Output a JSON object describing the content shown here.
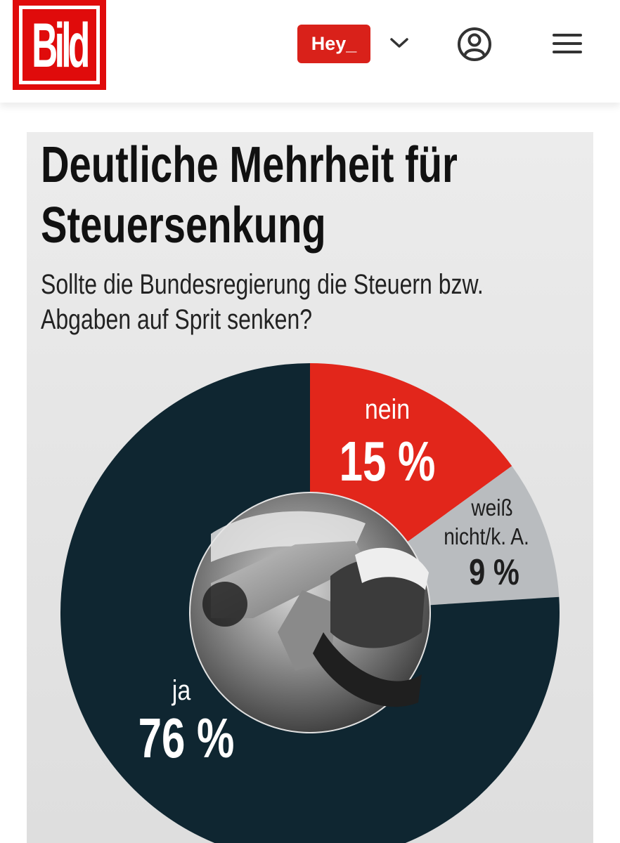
{
  "header": {
    "logo_text": "Bild",
    "hey_label": "Hey_",
    "colors": {
      "brand_red": "#e00b0b",
      "hey_red": "#d9211a"
    },
    "icons": [
      "chevron-down-icon",
      "user-icon",
      "menu-icon"
    ]
  },
  "graphic": {
    "title_line1": "Deutliche Mehrheit für",
    "title_line2": "Steuersenkung",
    "question_line1": "Sollte die Bundesregierung die Steuern bzw.",
    "question_line2": "Abgaben auf Sprit senken?"
  },
  "chart_data": {
    "type": "pie",
    "style": "donut",
    "slices": [
      {
        "label": "nein",
        "value": 15,
        "display": "15 %",
        "color": "#e2261b"
      },
      {
        "label": "weiß nicht/k. A.",
        "label_lines": [
          "weiß",
          "nicht/k. A."
        ],
        "value": 9,
        "display": "9 %",
        "color": "#b9bcbf"
      },
      {
        "label": "ja",
        "value": 76,
        "display": "76 %",
        "color": "#0f2631"
      }
    ],
    "center_image": "fuel-pump-nozzle-photo"
  }
}
